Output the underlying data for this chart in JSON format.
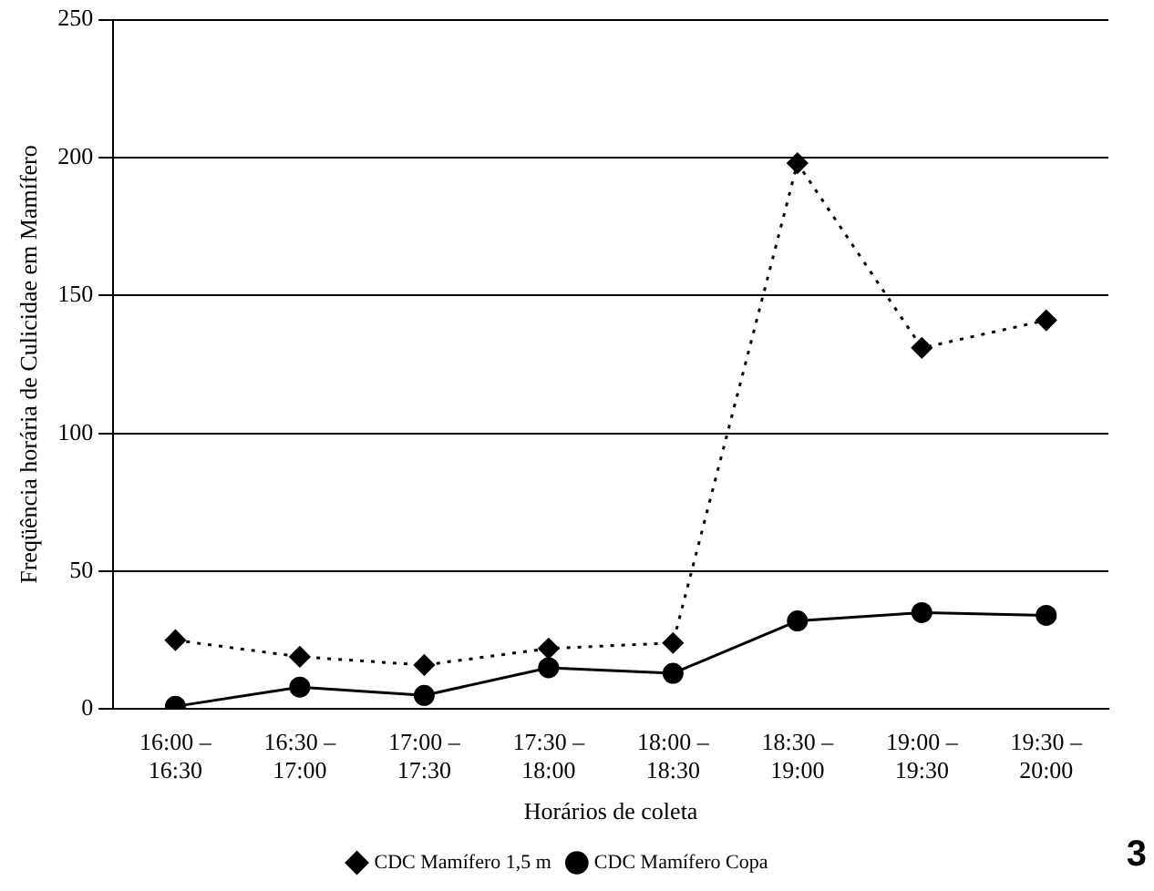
{
  "chart_data": {
    "type": "line",
    "xlabel": "Horários de coleta",
    "ylabel": "Freqüência horária de Culicidae em Mamífero",
    "categories": [
      "16:00 – 16:30",
      "16:30 – 17:00",
      "17:00 – 17:30",
      "17:30 – 18:00",
      "18:00 – 18:30",
      "18:30 – 19:00",
      "19:00 – 19:30",
      "19:30 – 20:00"
    ],
    "series": [
      {
        "name": "CDC Mamífero 1,5 m",
        "color": "#000000",
        "marker": "diamond",
        "line_style": "dotted",
        "values": [
          25,
          19,
          16,
          22,
          24,
          198,
          131,
          141
        ]
      },
      {
        "name": "CDC Mamífero Copa",
        "color": "#000000",
        "marker": "circle",
        "line_style": "solid",
        "values": [
          1,
          8,
          5,
          15,
          13,
          32,
          35,
          34
        ]
      }
    ],
    "ylim": [
      0,
      250
    ],
    "yticks": [
      0,
      50,
      100,
      150,
      200,
      250
    ],
    "grid": "y",
    "legend": "bottom",
    "annotations": [
      "3"
    ]
  }
}
